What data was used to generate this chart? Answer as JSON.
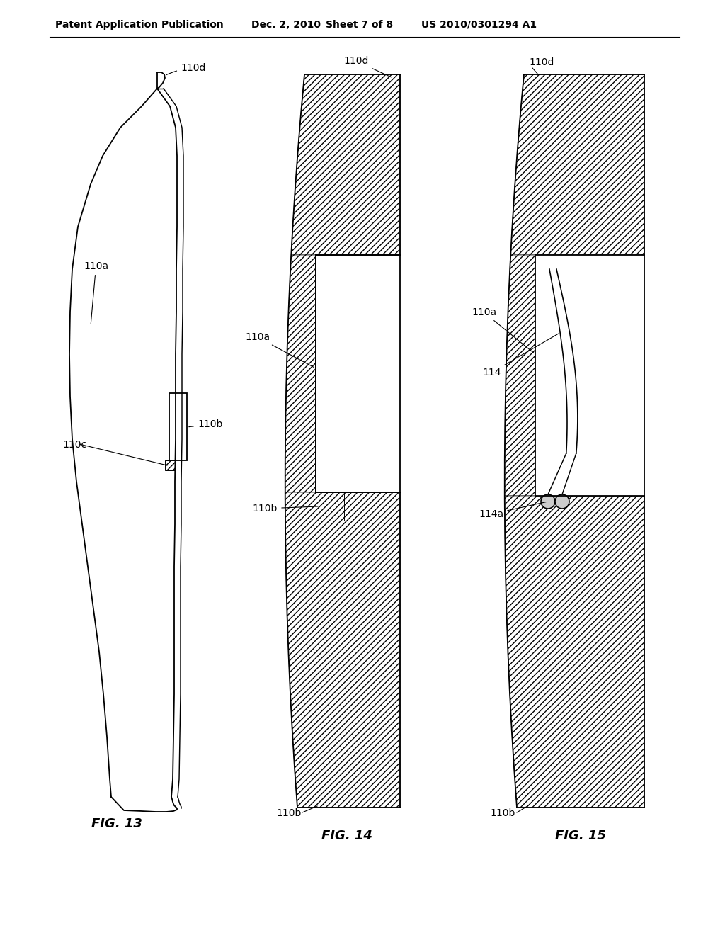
{
  "bg_color": "#ffffff",
  "header_text": "Patent Application Publication",
  "header_date": "Dec. 2, 2010",
  "header_sheet": "Sheet 7 of 8",
  "header_patent": "US 2010/0301294 A1",
  "fig13_label": "FIG. 13",
  "fig14_label": "FIG. 14",
  "fig15_label": "FIG. 15",
  "line_color": "#000000",
  "label_fontsize": 10,
  "header_fontsize": 10
}
